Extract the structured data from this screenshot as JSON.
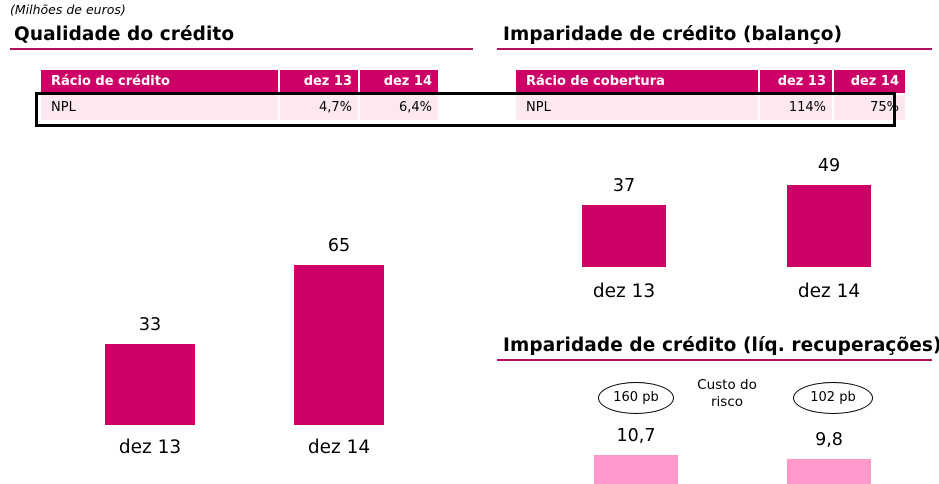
{
  "units": "(Milhões de euros)",
  "left_section": {
    "title": "Qualidade do crédito",
    "table": {
      "headers": [
        "Rácio de crédito",
        "dez 13",
        "dez 14"
      ],
      "row": [
        "NPL",
        "4,7%",
        "6,4%"
      ]
    }
  },
  "right_top_section": {
    "title": "Imparidade de crédito (balanço)",
    "table": {
      "headers": [
        "Rácio de cobertura",
        "dez 13",
        "dez 14"
      ],
      "row": [
        "NPL",
        "114%",
        "75%"
      ]
    }
  },
  "right_bottom_section": {
    "title": "Imparidade de crédito (líq. recuperações)",
    "risk_label_1": "Custo do",
    "risk_label_2": "risco",
    "cost_of_risk": [
      "160 pb",
      "102 pb"
    ]
  },
  "colors": {
    "accent": "#cc0066",
    "light_bar": "#ff99cc",
    "table_row": "#fde8ee"
  },
  "chart_data": [
    {
      "type": "bar",
      "title": "Qualidade do crédito",
      "categories": [
        "dez 13",
        "dez 14"
      ],
      "values": [
        33,
        65
      ],
      "value_labels": [
        "33",
        "65"
      ],
      "color": "#cc0066"
    },
    {
      "type": "bar",
      "title": "Imparidade de crédito (balanço)",
      "categories": [
        "dez 13",
        "dez 14"
      ],
      "values": [
        37,
        49
      ],
      "value_labels": [
        "37",
        "49"
      ],
      "color": "#cc0066"
    },
    {
      "type": "bar",
      "title": "Imparidade de crédito (líq. recuperações)",
      "categories": [
        "",
        ""
      ],
      "values": [
        10.7,
        9.8
      ],
      "value_labels": [
        "10,7",
        "9,8"
      ],
      "color": "#ff99cc"
    }
  ]
}
